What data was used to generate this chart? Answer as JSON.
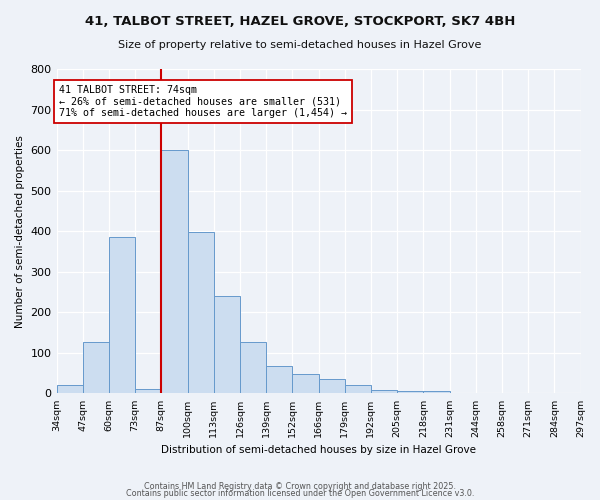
{
  "title": "41, TALBOT STREET, HAZEL GROVE, STOCKPORT, SK7 4BH",
  "subtitle": "Size of property relative to semi-detached houses in Hazel Grove",
  "xlabel": "Distribution of semi-detached houses by size in Hazel Grove",
  "ylabel": "Number of semi-detached properties",
  "bins": [
    "34sqm",
    "47sqm",
    "60sqm",
    "73sqm",
    "87sqm",
    "100sqm",
    "113sqm",
    "126sqm",
    "139sqm",
    "152sqm",
    "166sqm",
    "179sqm",
    "192sqm",
    "205sqm",
    "218sqm",
    "231sqm",
    "244sqm",
    "258sqm",
    "271sqm",
    "284sqm",
    "297sqm"
  ],
  "bar_values": [
    22,
    128,
    385,
    10,
    600,
    398,
    240,
    128,
    68,
    48,
    35,
    20,
    8,
    5,
    5,
    0,
    0,
    0,
    0,
    0
  ],
  "bar_color": "#ccddf0",
  "bar_edge_color": "#6699cc",
  "vline_x_index": 4,
  "vline_color": "#cc0000",
  "annotation_line1": "41 TALBOT STREET: 74sqm",
  "annotation_line2": "← 26% of semi-detached houses are smaller (531)",
  "annotation_line3": "71% of semi-detached houses are larger (1,454) →",
  "annotation_box_edge": "#cc0000",
  "annotation_box_bg": "#ffffff",
  "ylim": [
    0,
    800
  ],
  "yticks": [
    0,
    100,
    200,
    300,
    400,
    500,
    600,
    700,
    800
  ],
  "footer1": "Contains HM Land Registry data © Crown copyright and database right 2025.",
  "footer2": "Contains public sector information licensed under the Open Government Licence v3.0.",
  "bg_color": "#eef2f8",
  "plot_bg_color": "#eef2f8"
}
